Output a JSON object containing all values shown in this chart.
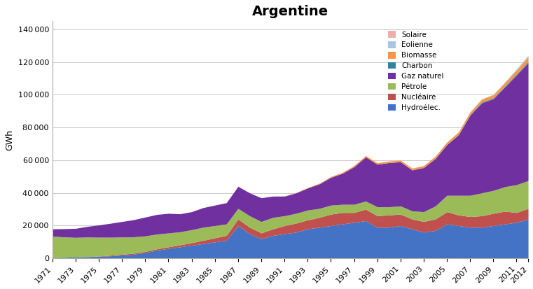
{
  "title": "Argentine",
  "ylabel": "GWh",
  "years": [
    1971,
    1972,
    1973,
    1974,
    1975,
    1976,
    1977,
    1978,
    1979,
    1980,
    1981,
    1982,
    1983,
    1984,
    1985,
    1986,
    1987,
    1988,
    1989,
    1990,
    1991,
    1992,
    1993,
    1994,
    1995,
    1996,
    1997,
    1998,
    1999,
    2000,
    2001,
    2002,
    2003,
    2004,
    2005,
    2006,
    2007,
    2008,
    2009,
    2010,
    2011,
    2012
  ],
  "series": {
    "Hydroélec.": [
      500,
      600,
      800,
      1000,
      1200,
      1500,
      2000,
      2500,
      3500,
      5000,
      6000,
      7000,
      8000,
      9000,
      10000,
      11000,
      20000,
      15000,
      12000,
      14000,
      15000,
      16000,
      18000,
      19000,
      20000,
      21000,
      22000,
      23000,
      19000,
      19000,
      20000,
      18000,
      16000,
      17000,
      21000,
      20000,
      19000,
      19000,
      20000,
      21000,
      22000,
      24000
    ],
    "Nucléaire": [
      0,
      0,
      0,
      0,
      200,
      400,
      500,
      600,
      700,
      800,
      1000,
      1200,
      1500,
      2000,
      2500,
      3000,
      4000,
      4000,
      3500,
      4000,
      5000,
      5500,
      5500,
      6000,
      7000,
      7000,
      6000,
      7000,
      7000,
      7500,
      7000,
      6000,
      6500,
      7000,
      7500,
      6500,
      6500,
      7000,
      7500,
      7800,
      6000,
      6500
    ],
    "Pétrole": [
      13000,
      12500,
      12000,
      12000,
      11500,
      11000,
      10500,
      10000,
      9500,
      9000,
      8500,
      8000,
      8000,
      8000,
      7500,
      7000,
      6500,
      7000,
      7000,
      7000,
      6000,
      6000,
      6000,
      5500,
      5500,
      5000,
      5000,
      5000,
      5500,
      5000,
      5000,
      5000,
      6000,
      8000,
      10000,
      12000,
      13000,
      14000,
      14000,
      15000,
      17000,
      17000
    ],
    "Gaz naturel": [
      4500,
      5000,
      5500,
      6500,
      7500,
      8500,
      9500,
      10500,
      11500,
      12000,
      12000,
      11000,
      11000,
      12000,
      12500,
      13000,
      13500,
      14000,
      14500,
      13000,
      12000,
      12500,
      13500,
      15000,
      17000,
      19000,
      23000,
      27000,
      26000,
      27000,
      27000,
      25000,
      27000,
      29000,
      31000,
      37000,
      49000,
      55000,
      56000,
      61000,
      67000,
      72000
    ],
    "Charbon": [
      0,
      0,
      0,
      0,
      0,
      0,
      0,
      0,
      0,
      0,
      0,
      0,
      0,
      0,
      0,
      0,
      0,
      0,
      0,
      0,
      0,
      0,
      0,
      0,
      0,
      0,
      0,
      0,
      0,
      0,
      0,
      0,
      0,
      100,
      200,
      300,
      400,
      500,
      500,
      500,
      600,
      700
    ],
    "Biomasse": [
      0,
      0,
      0,
      0,
      0,
      0,
      0,
      0,
      0,
      0,
      0,
      0,
      0,
      0,
      0,
      0,
      0,
      0,
      0,
      0,
      100,
      200,
      300,
      400,
      500,
      600,
      700,
      800,
      900,
      1000,
      1000,
      1100,
      1200,
      1300,
      1400,
      1500,
      1600,
      1800,
      2000,
      2200,
      2500,
      3000
    ],
    "Eolienne": [
      0,
      0,
      0,
      0,
      0,
      0,
      0,
      0,
      0,
      0,
      0,
      0,
      0,
      0,
      0,
      0,
      0,
      0,
      0,
      0,
      0,
      0,
      0,
      0,
      0,
      0,
      0,
      0,
      0,
      0,
      0,
      0,
      0,
      0,
      0,
      0,
      100,
      200,
      300,
      400,
      600,
      900
    ],
    "Solaire": [
      0,
      0,
      0,
      0,
      0,
      0,
      0,
      0,
      0,
      0,
      0,
      0,
      0,
      0,
      0,
      0,
      0,
      0,
      0,
      0,
      0,
      0,
      0,
      0,
      0,
      0,
      0,
      0,
      0,
      0,
      0,
      0,
      0,
      0,
      0,
      0,
      0,
      0,
      0,
      0,
      50,
      100
    ]
  },
  "colors": {
    "Hydroélec.": "#4472C4",
    "Nucléaire": "#C0504D",
    "Pétrole": "#9BBB59",
    "Gaz naturel": "#7030A0",
    "Charbon": "#31849B",
    "Biomasse": "#F79646",
    "Eolienne": "#A9C4E4",
    "Solaire": "#F2ABAB"
  },
  "legend_order": [
    "Solaire",
    "Eolienne",
    "Biomasse",
    "Charbon",
    "Gaz naturel",
    "Pétrole",
    "Nucléaire",
    "Hydroélec."
  ],
  "stack_order": [
    "Hydroélec.",
    "Nucléaire",
    "Pétrole",
    "Gaz naturel",
    "Charbon",
    "Biomasse",
    "Eolienne",
    "Solaire"
  ],
  "ylim": [
    0,
    145000
  ],
  "yticks": [
    0,
    20000,
    40000,
    60000,
    80000,
    100000,
    120000,
    140000
  ],
  "xtick_years": [
    1971,
    1973,
    1975,
    1977,
    1979,
    1981,
    1983,
    1985,
    1987,
    1989,
    1991,
    1993,
    1995,
    1997,
    1999,
    2001,
    2003,
    2005,
    2007,
    2009,
    2011,
    2012
  ]
}
